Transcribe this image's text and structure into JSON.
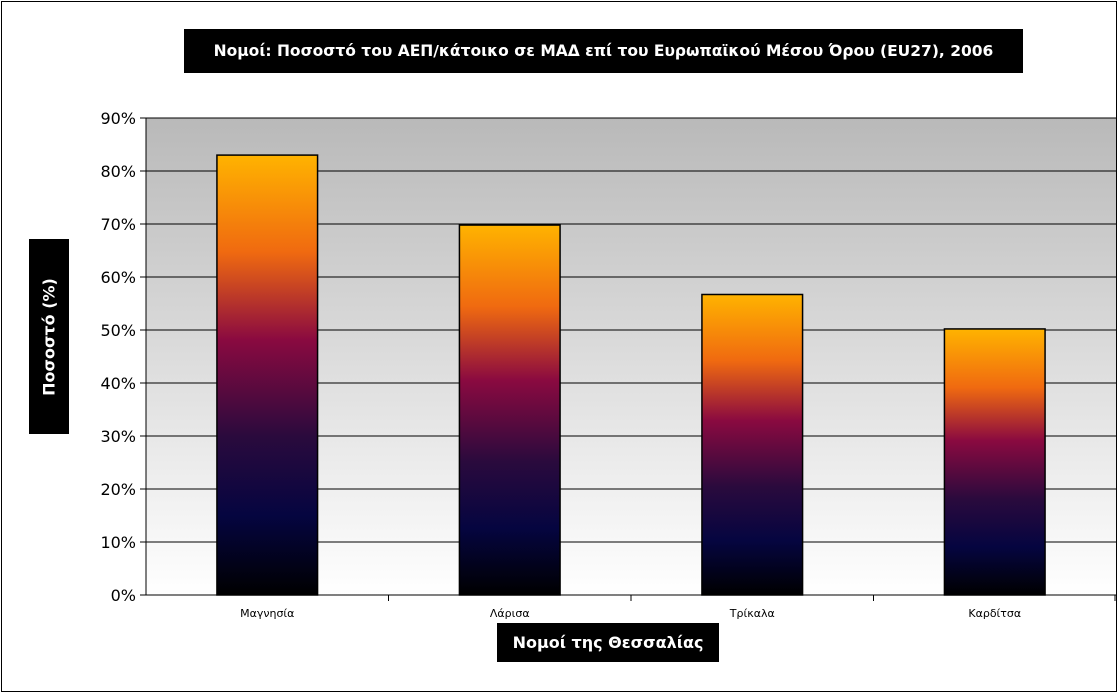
{
  "chart_data": {
    "type": "bar",
    "title": "Νομοί: Ποσοστό του ΑΕΠ/κάτοικο σε ΜΑΔ επί του Ευρωπαϊκού Μέσου Όρου (EU27), 2006",
    "xlabel": "Νομοί της Θεσσαλίας",
    "ylabel": "Ποσοστό (%)",
    "categories": [
      "Μαγνησία",
      "Λάρισα",
      "Τρίκαλα",
      "Καρδίτσα"
    ],
    "values": [
      83,
      69.8,
      56.7,
      50.2
    ],
    "ylim": [
      0,
      90
    ],
    "ytick_step": 10,
    "ytick_suffix": "%",
    "grid": true,
    "legend": "none",
    "colors": {
      "plot_bg_top": "#b9b9b9",
      "plot_bg_bottom": "#ffffff",
      "bar_top": "#ffb300",
      "bar_upper": "#f06a10",
      "bar_mid": "#8a0a40",
      "bar_lower": "#2a0a3d",
      "bar_dark": "#050540",
      "bar_bottom": "#000000",
      "gridline": "#000000"
    }
  }
}
